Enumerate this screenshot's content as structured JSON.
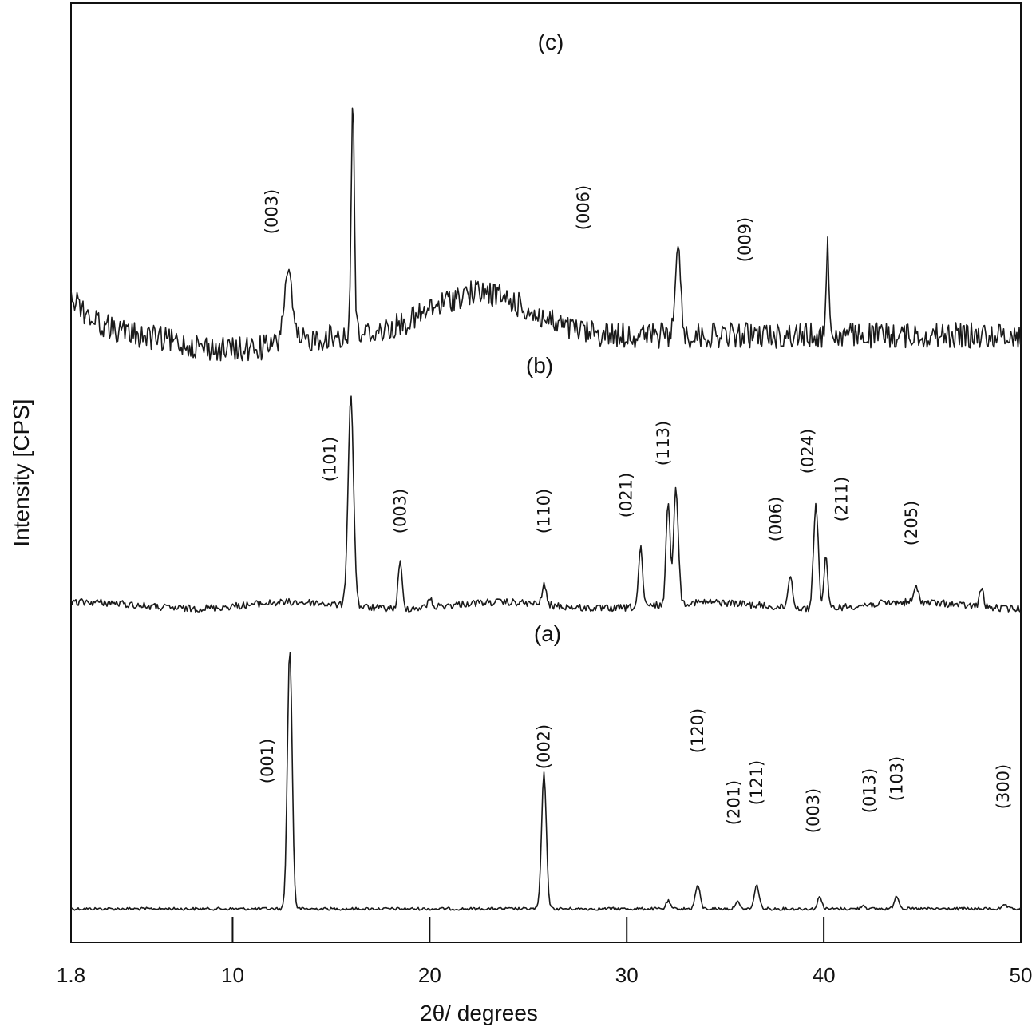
{
  "chart_data": {
    "type": "line",
    "title": "",
    "xlabel": "2θ/ degrees",
    "ylabel": "Intensity [CPS]",
    "xlim": [
      1.8,
      50
    ],
    "x_ticks": [
      {
        "value": 1.8,
        "label": "1.8"
      },
      {
        "value": 10,
        "label": "10"
      },
      {
        "value": 20,
        "label": "20"
      },
      {
        "value": 30,
        "label": "30"
      },
      {
        "value": 40,
        "label": "40"
      },
      {
        "value": 50,
        "label": "50"
      }
    ],
    "y_ticks": [],
    "series": [
      {
        "name": "(a)",
        "panel_label": "(a)",
        "baseline": 0.02,
        "peaks": [
          {
            "x": 12.9,
            "height": 1.0,
            "width": 0.12,
            "hkl": "(001)"
          },
          {
            "x": 25.8,
            "height": 0.52,
            "width": 0.12,
            "hkl": "(002)"
          },
          {
            "x": 32.1,
            "height": 0.03,
            "width": 0.1,
            "hkl": ""
          },
          {
            "x": 33.6,
            "height": 0.09,
            "width": 0.12,
            "hkl": "(120)"
          },
          {
            "x": 35.6,
            "height": 0.03,
            "width": 0.1,
            "hkl": "(201)"
          },
          {
            "x": 36.6,
            "height": 0.09,
            "width": 0.12,
            "hkl": "(121)"
          },
          {
            "x": 39.8,
            "height": 0.05,
            "width": 0.1,
            "hkl": "(003)"
          },
          {
            "x": 42.0,
            "height": 0.015,
            "width": 0.1,
            "hkl": "(013)"
          },
          {
            "x": 43.7,
            "height": 0.05,
            "width": 0.12,
            "hkl": "(103)"
          },
          {
            "x": 49.2,
            "height": 0.015,
            "width": 0.1,
            "hkl": "(300)"
          }
        ]
      },
      {
        "name": "(b)",
        "panel_label": "(b)",
        "baseline": 0.02,
        "peaks": [
          {
            "x": 16.0,
            "height": 1.0,
            "width": 0.14,
            "hkl": "(101)"
          },
          {
            "x": 18.5,
            "height": 0.22,
            "width": 0.1,
            "hkl": "(003)"
          },
          {
            "x": 20.0,
            "height": 0.05,
            "width": 0.08,
            "hkl": ""
          },
          {
            "x": 25.8,
            "height": 0.1,
            "width": 0.1,
            "hkl": "(110)"
          },
          {
            "x": 30.7,
            "height": 0.28,
            "width": 0.1,
            "hkl": "(021)"
          },
          {
            "x": 32.1,
            "height": 0.5,
            "width": 0.1,
            "hkl": ""
          },
          {
            "x": 32.5,
            "height": 0.55,
            "width": 0.12,
            "hkl": "(113)"
          },
          {
            "x": 38.3,
            "height": 0.15,
            "width": 0.12,
            "hkl": "(006)"
          },
          {
            "x": 39.6,
            "height": 0.5,
            "width": 0.12,
            "hkl": "(024)"
          },
          {
            "x": 40.1,
            "height": 0.25,
            "width": 0.09,
            "hkl": "(211)"
          },
          {
            "x": 44.7,
            "height": 0.07,
            "width": 0.12,
            "hkl": "(205)"
          },
          {
            "x": 48.0,
            "height": 0.09,
            "width": 0.1,
            "hkl": ""
          }
        ]
      },
      {
        "name": "(c)",
        "panel_label": "(c)",
        "baseline": 0.15,
        "peaks": [
          {
            "x": 12.8,
            "height": 0.3,
            "width": 0.2,
            "hkl": "(003)"
          },
          {
            "x": 16.1,
            "height": 1.0,
            "width": 0.08,
            "hkl": ""
          },
          {
            "x": 22.5,
            "height": 0.18,
            "width": 2.4,
            "hkl": "(006)"
          },
          {
            "x": 32.6,
            "height": 0.42,
            "width": 0.12,
            "hkl": "(009)"
          },
          {
            "x": 40.2,
            "height": 0.38,
            "width": 0.07,
            "hkl": ""
          }
        ]
      }
    ],
    "grid": false,
    "legend": "none"
  }
}
